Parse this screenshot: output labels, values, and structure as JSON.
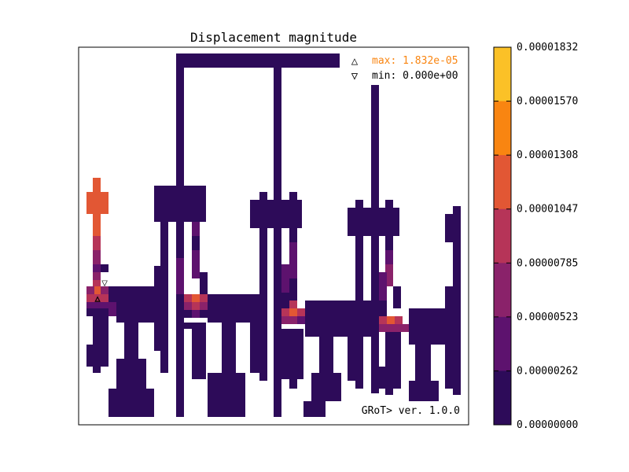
{
  "chart_data": {
    "type": "heatmap",
    "title": "Displacement magnitude",
    "colorbar": {
      "range": [
        0.0,
        1.832e-05
      ],
      "ticks": [
        "0.00001832",
        "0.00001570",
        "0.00001308",
        "0.00001047",
        "0.00000785",
        "0.00000523",
        "0.00000262",
        "0.00000000"
      ],
      "colors": [
        "#fbc127",
        "#f98511",
        "#e25734",
        "#b63458",
        "#8a226a",
        "#5d126e",
        "#2d0b59"
      ]
    },
    "legend": {
      "max_label": "max: 1.832e-05",
      "min_label": "min: 0.000e+00",
      "max_color": "#f98511",
      "placement": "top-right"
    },
    "annotation": "GRoT> ver. 1.0.0",
    "cells": [
      [
        224,
        68,
        208,
        18,
        0
      ],
      [
        224,
        86,
        10,
        444,
        0
      ],
      [
        348,
        86,
        10,
        444,
        0
      ],
      [
        472,
        108,
        10,
        392,
        0
      ],
      [
        118,
        226,
        10,
        18,
        4
      ],
      [
        110,
        244,
        28,
        28,
        4
      ],
      [
        118,
        272,
        10,
        28,
        4
      ],
      [
        118,
        300,
        10,
        18,
        3
      ],
      [
        118,
        318,
        10,
        18,
        2
      ],
      [
        118,
        336,
        10,
        10,
        1
      ],
      [
        128,
        336,
        10,
        10,
        0
      ],
      [
        118,
        346,
        10,
        10,
        2
      ],
      [
        118,
        356,
        10,
        8,
        3
      ],
      [
        110,
        364,
        10,
        10,
        2
      ],
      [
        120,
        364,
        8,
        10,
        4
      ],
      [
        128,
        364,
        10,
        10,
        2
      ],
      [
        110,
        374,
        28,
        10,
        3
      ],
      [
        138,
        374,
        10,
        10,
        2
      ],
      [
        138,
        364,
        58,
        38,
        0
      ],
      [
        110,
        384,
        28,
        10,
        1
      ],
      [
        138,
        384,
        10,
        18,
        1
      ],
      [
        110,
        392,
        28,
        10,
        0
      ],
      [
        148,
        392,
        48,
        18,
        0
      ],
      [
        118,
        402,
        20,
        36,
        0
      ],
      [
        110,
        438,
        28,
        28,
        0
      ],
      [
        118,
        466,
        10,
        8,
        0
      ],
      [
        158,
        410,
        18,
        46,
        0
      ],
      [
        148,
        456,
        38,
        38,
        0
      ],
      [
        138,
        494,
        58,
        36,
        0
      ],
      [
        196,
        236,
        66,
        46,
        0
      ],
      [
        196,
        338,
        18,
        38,
        0
      ],
      [
        204,
        282,
        10,
        56,
        0
      ],
      [
        196,
        374,
        18,
        72,
        0
      ],
      [
        204,
        446,
        10,
        28,
        0
      ],
      [
        234,
        236,
        10,
        46,
        0
      ],
      [
        244,
        282,
        10,
        18,
        1
      ],
      [
        244,
        300,
        10,
        18,
        0
      ],
      [
        244,
        318,
        10,
        36,
        1
      ],
      [
        254,
        346,
        10,
        28,
        0
      ],
      [
        224,
        328,
        10,
        46,
        1
      ],
      [
        234,
        374,
        10,
        10,
        3
      ],
      [
        244,
        374,
        10,
        10,
        4
      ],
      [
        254,
        374,
        10,
        10,
        3
      ],
      [
        234,
        384,
        10,
        10,
        2
      ],
      [
        244,
        384,
        10,
        10,
        3
      ],
      [
        254,
        384,
        10,
        10,
        2
      ],
      [
        264,
        374,
        66,
        36,
        0
      ],
      [
        234,
        394,
        10,
        10,
        0
      ],
      [
        244,
        394,
        10,
        10,
        1
      ],
      [
        254,
        394,
        20,
        10,
        0
      ],
      [
        330,
        346,
        10,
        64,
        0
      ],
      [
        318,
        254,
        66,
        36,
        0
      ],
      [
        330,
        244,
        10,
        10,
        0
      ],
      [
        368,
        244,
        10,
        10,
        0
      ],
      [
        330,
        290,
        10,
        56,
        0
      ],
      [
        368,
        290,
        10,
        18,
        0
      ],
      [
        368,
        308,
        10,
        18,
        1
      ],
      [
        368,
        326,
        10,
        28,
        1
      ],
      [
        368,
        354,
        10,
        28,
        0
      ],
      [
        234,
        410,
        28,
        8,
        0
      ],
      [
        244,
        418,
        18,
        64,
        0
      ],
      [
        282,
        410,
        18,
        64,
        0
      ],
      [
        264,
        474,
        48,
        56,
        0
      ],
      [
        318,
        410,
        22,
        64,
        0
      ],
      [
        330,
        474,
        10,
        10,
        0
      ],
      [
        358,
        336,
        10,
        36,
        1
      ],
      [
        358,
        372,
        10,
        20,
        0
      ],
      [
        368,
        382,
        10,
        10,
        3
      ],
      [
        358,
        392,
        10,
        10,
        3
      ],
      [
        368,
        392,
        10,
        10,
        4
      ],
      [
        378,
        392,
        10,
        10,
        3
      ],
      [
        358,
        402,
        10,
        10,
        2
      ],
      [
        368,
        402,
        10,
        10,
        2
      ],
      [
        378,
        402,
        10,
        10,
        1
      ],
      [
        388,
        382,
        84,
        46,
        0
      ],
      [
        348,
        418,
        38,
        64,
        0
      ],
      [
        368,
        482,
        10,
        12,
        0
      ],
      [
        406,
        428,
        18,
        46,
        0
      ],
      [
        396,
        474,
        38,
        36,
        0
      ],
      [
        386,
        510,
        28,
        20,
        0
      ],
      [
        442,
        264,
        66,
        36,
        0
      ],
      [
        452,
        254,
        10,
        10,
        0
      ],
      [
        490,
        254,
        10,
        10,
        0
      ],
      [
        452,
        300,
        10,
        46,
        0
      ],
      [
        452,
        346,
        10,
        56,
        0
      ],
      [
        442,
        428,
        20,
        56,
        0
      ],
      [
        452,
        484,
        10,
        10,
        0
      ],
      [
        490,
        300,
        10,
        18,
        0
      ],
      [
        490,
        318,
        10,
        18,
        1
      ],
      [
        490,
        336,
        10,
        28,
        2
      ],
      [
        500,
        364,
        10,
        28,
        0
      ],
      [
        482,
        346,
        10,
        36,
        1
      ],
      [
        482,
        382,
        10,
        20,
        0
      ],
      [
        482,
        402,
        10,
        10,
        3
      ],
      [
        492,
        402,
        10,
        10,
        4
      ],
      [
        502,
        402,
        10,
        10,
        3
      ],
      [
        482,
        412,
        20,
        10,
        2
      ],
      [
        502,
        412,
        18,
        10,
        2
      ],
      [
        520,
        392,
        66,
        46,
        0
      ],
      [
        490,
        422,
        20,
        44,
        0
      ],
      [
        482,
        466,
        28,
        28,
        0
      ],
      [
        490,
        494,
        10,
        8,
        0
      ],
      [
        528,
        438,
        20,
        56,
        0
      ],
      [
        520,
        484,
        38,
        26,
        0
      ],
      [
        566,
        438,
        20,
        56,
        0
      ],
      [
        576,
        494,
        10,
        8,
        0
      ],
      [
        566,
        272,
        20,
        36,
        0
      ],
      [
        576,
        262,
        10,
        10,
        0
      ],
      [
        576,
        308,
        10,
        56,
        0
      ],
      [
        566,
        364,
        20,
        28,
        0
      ]
    ],
    "markers": [
      {
        "kind": "max",
        "symbol": "△",
        "x": 124,
        "y": 379
      },
      {
        "kind": "min",
        "symbol": "▼",
        "x": 133,
        "y": 359
      }
    ]
  }
}
